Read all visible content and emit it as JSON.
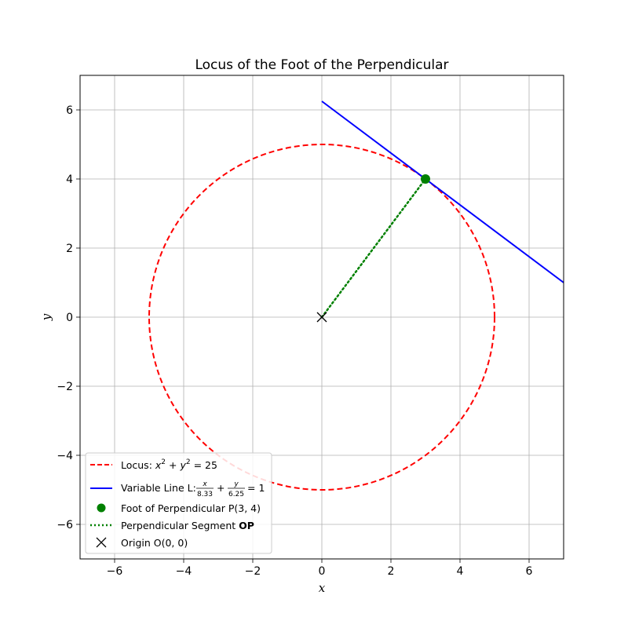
{
  "chart_data": {
    "type": "line",
    "title": "Locus of the Foot of the Perpendicular",
    "xlabel": "x",
    "ylabel": "y",
    "xlim": [
      -7,
      7
    ],
    "ylim": [
      -7,
      7
    ],
    "xticks": [
      -6,
      -4,
      -2,
      0,
      2,
      4,
      6
    ],
    "yticks": [
      -6,
      -4,
      -2,
      0,
      2,
      4,
      6
    ],
    "tick_labels_x": [
      "−6",
      "−4",
      "−2",
      "0",
      "2",
      "4",
      "6"
    ],
    "tick_labels_y": [
      "−6",
      "−4",
      "−2",
      "0",
      "2",
      "4",
      "6"
    ],
    "grid": true,
    "legend_position": "bottom-left",
    "series": [
      {
        "name": "Locus: x² + y² = 25",
        "kind": "circle",
        "center": [
          0,
          0
        ],
        "radius": 5,
        "color": "#ff0000",
        "style": "dashed"
      },
      {
        "name": "Variable Line L: x/8.33 + y/6.25 = 1",
        "kind": "line",
        "x": [
          0,
          7
        ],
        "y": [
          6.25,
          1
        ],
        "color": "#0000ff",
        "style": "solid"
      },
      {
        "name": "Foot of Perpendicular P(3, 4)",
        "kind": "point",
        "x": [
          3
        ],
        "y": [
          4
        ],
        "color": "#008000",
        "marker": "circle"
      },
      {
        "name": "Perpendicular Segment OP",
        "kind": "segment",
        "x": [
          0,
          3
        ],
        "y": [
          0,
          4
        ],
        "color": "#008000",
        "style": "dotted"
      },
      {
        "name": "Origin O(0, 0)",
        "kind": "point",
        "x": [
          0
        ],
        "y": [
          0
        ],
        "color": "#000000",
        "marker": "x"
      }
    ],
    "legend": {
      "locus": {
        "prefix": "Locus: ",
        "a": "x",
        "b": "y",
        "exp": "2",
        "rhs": " = 25"
      },
      "line": {
        "prefix": "Variable Line L: ",
        "num1": "x",
        "den1": "8.33",
        "num2": "y",
        "den2": "6.25",
        "rhs": "= 1",
        "plus": "+"
      },
      "foot": "Foot of Perpendicular P(3, 4)",
      "segment": {
        "prefix": "Perpendicular Segment ",
        "bold": "OP"
      },
      "origin": "Origin O(0, 0)"
    }
  }
}
